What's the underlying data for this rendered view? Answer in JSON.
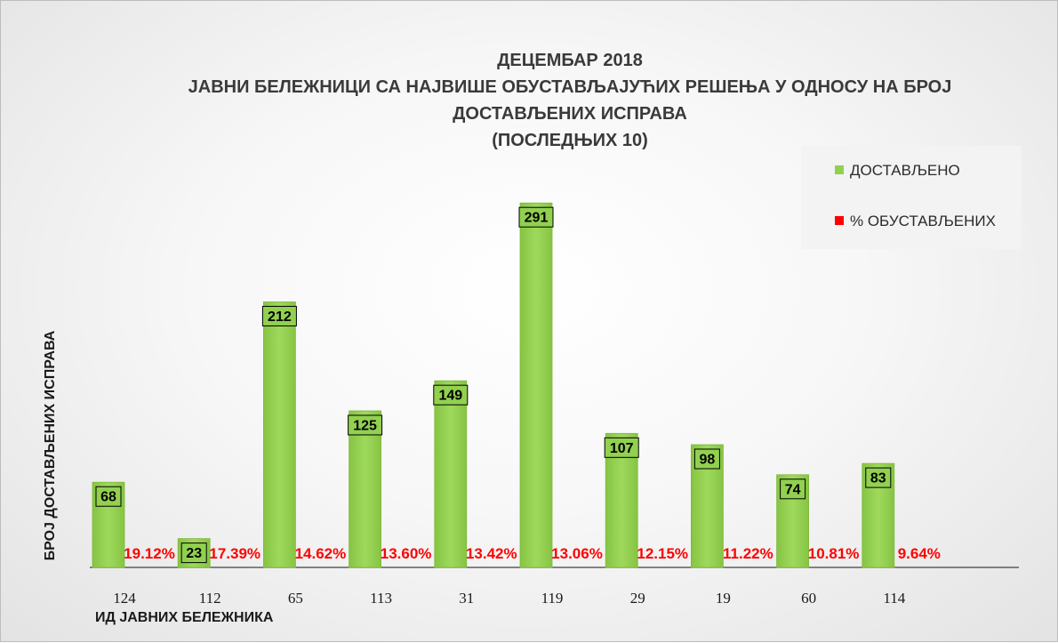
{
  "chart": {
    "title_lines": [
      "ДЕЦЕМБАР 2018",
      "ЈАВНИ БЕЛЕЖНИЦИ СА НАЈВИШЕ ОБУСТАВЉАЈУЋИХ РЕШЕЊА У ОДНОСУ НА БРОЈ",
      "ДОСТАВЉЕНИХ ИСПРАВА",
      "(ПОСЛЕДЊИХ 10)"
    ],
    "y_axis_title": "БРОЈ ДОСТАВЉЕНИХ ИСПРАВА",
    "x_axis_title": "ИД ЈАВНИХ БЕЛЕЖНИКА",
    "legend": [
      {
        "label": "ДОСТАВЉЕНО",
        "color": "#92d050"
      },
      {
        "label": "% ОБУСТАВЉЕНИХ",
        "color": "#ff0000"
      }
    ]
  },
  "chart_data": {
    "type": "bar",
    "categories": [
      "124",
      "112",
      "65",
      "113",
      "31",
      "119",
      "29",
      "19",
      "60",
      "114"
    ],
    "series": [
      {
        "name": "ДОСТАВЉЕНО",
        "values": [
          68,
          23,
          212,
          125,
          149,
          291,
          107,
          98,
          74,
          83
        ],
        "color": "#92d050"
      },
      {
        "name": "% ОБУСТАВЉЕНИХ",
        "values": [
          19.12,
          17.39,
          14.62,
          13.6,
          13.42,
          13.06,
          12.15,
          11.22,
          10.81,
          9.64
        ],
        "color": "#ff0000"
      }
    ],
    "percent_labels": [
      "19.12%",
      "17.39%",
      "14.62%",
      "13.60%",
      "13.42%",
      "13.06%",
      "12.15%",
      "11.22%",
      "10.81%",
      "9.64%"
    ],
    "ylim": [
      0,
      300
    ],
    "grid": false,
    "legend_position": "top-right"
  }
}
